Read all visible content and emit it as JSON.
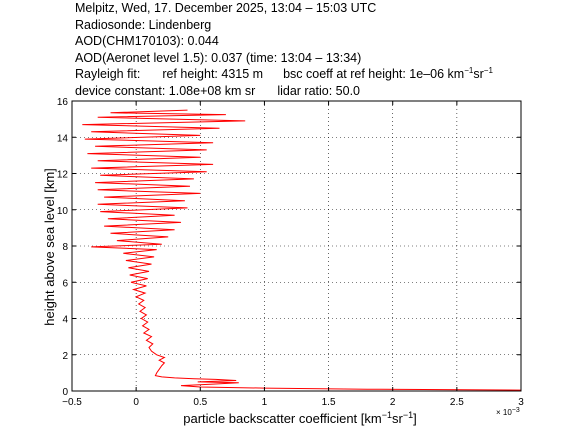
{
  "header": {
    "title_line": "Melpitz, Wed, 17. December 2025, 13:04 – 15:03 UTC",
    "radiosonde": "Radiosonde: Lindenberg",
    "aod_chm": "AOD(CHM170103): 0.044",
    "aod_aeronet": "AOD(Aeronet level 1.5): 0.037   (time: 13:04 – 13:34)",
    "rayleigh_fit": "Rayleigh fit:",
    "ref_height": "ref height: 4315 m",
    "bsc_coeff_prefix": "bsc coeff at ref height: 1e–06 km",
    "device_constant": "device constant: 1.08e+08 km sr",
    "lidar_ratio": "lidar ratio: 50.0"
  },
  "units": {
    "exp_neg1": "−1",
    "sr": "sr",
    "km": "km"
  },
  "chart_data": {
    "type": "line",
    "xlabel_prefix": "particle backscatter coefficient [km",
    "xlabel_suffix": "]",
    "ylabel": "height above sea level [km]",
    "x_multiplier": "× 10",
    "x_multiplier_exp": "−3",
    "xlim": [
      -0.5,
      3.0
    ],
    "ylim": [
      0,
      16
    ],
    "xticks": [
      -0.5,
      0,
      0.5,
      1,
      1.5,
      2,
      2.5,
      3
    ],
    "xtick_labels": [
      "−0.5",
      "0",
      "0.5",
      "1",
      "1.5",
      "2",
      "2.5",
      "3"
    ],
    "yticks": [
      0,
      2,
      4,
      6,
      8,
      10,
      12,
      14,
      16
    ],
    "ytick_labels": [
      "0",
      "2",
      "4",
      "6",
      "8",
      "10",
      "12",
      "14",
      "16"
    ],
    "grid": true,
    "line_color": "#ff0000",
    "series": [
      {
        "unit_scale": "1e-3 km-1 sr-1",
        "points": [
          [
            3.0,
            0.05
          ],
          [
            1.8,
            0.1
          ],
          [
            1.0,
            0.16
          ],
          [
            0.5,
            0.22
          ],
          [
            0.35,
            0.3
          ],
          [
            0.6,
            0.38
          ],
          [
            0.8,
            0.45
          ],
          [
            0.48,
            0.5
          ],
          [
            0.78,
            0.58
          ],
          [
            0.62,
            0.64
          ],
          [
            0.45,
            0.68
          ],
          [
            0.3,
            0.72
          ],
          [
            0.2,
            0.78
          ],
          [
            0.15,
            0.85
          ],
          [
            0.16,
            1.0
          ],
          [
            0.18,
            1.2
          ],
          [
            0.2,
            1.4
          ],
          [
            0.22,
            1.55
          ],
          [
            0.18,
            1.7
          ],
          [
            0.22,
            1.85
          ],
          [
            0.16,
            2.0
          ],
          [
            0.12,
            2.2
          ],
          [
            0.1,
            2.4
          ],
          [
            0.13,
            2.6
          ],
          [
            0.08,
            2.8
          ],
          [
            0.12,
            3.0
          ],
          [
            0.06,
            3.2
          ],
          [
            0.1,
            3.4
          ],
          [
            0.05,
            3.6
          ],
          [
            0.09,
            3.8
          ],
          [
            0.04,
            4.0
          ],
          [
            0.08,
            4.2
          ],
          [
            0.03,
            4.4
          ],
          [
            0.07,
            4.6
          ],
          [
            0.02,
            4.8
          ],
          [
            0.06,
            5.0
          ],
          [
            0.0,
            5.2
          ],
          [
            0.07,
            5.4
          ],
          [
            -0.02,
            5.6
          ],
          [
            0.08,
            5.8
          ],
          [
            -0.04,
            6.0
          ],
          [
            0.09,
            6.2
          ],
          [
            -0.05,
            6.4
          ],
          [
            0.1,
            6.6
          ],
          [
            -0.06,
            6.8
          ],
          [
            0.12,
            7.0
          ],
          [
            -0.08,
            7.2
          ],
          [
            0.14,
            7.4
          ],
          [
            -0.1,
            7.6
          ],
          [
            0.16,
            7.8
          ],
          [
            -0.35,
            7.95
          ],
          [
            0.2,
            8.1
          ],
          [
            -0.15,
            8.3
          ],
          [
            0.25,
            8.5
          ],
          [
            -0.2,
            8.7
          ],
          [
            0.3,
            8.9
          ],
          [
            -0.25,
            9.1
          ],
          [
            0.35,
            9.3
          ],
          [
            -0.22,
            9.5
          ],
          [
            0.3,
            9.7
          ],
          [
            -0.28,
            9.9
          ],
          [
            0.4,
            10.1
          ],
          [
            -0.3,
            10.3
          ],
          [
            0.38,
            10.5
          ],
          [
            -0.25,
            10.7
          ],
          [
            0.5,
            10.9
          ],
          [
            -0.3,
            11.1
          ],
          [
            0.42,
            11.3
          ],
          [
            -0.32,
            11.5
          ],
          [
            0.45,
            11.7
          ],
          [
            -0.28,
            11.9
          ],
          [
            0.55,
            12.1
          ],
          [
            -0.35,
            12.3
          ],
          [
            0.6,
            12.5
          ],
          [
            -0.3,
            12.7
          ],
          [
            0.5,
            12.9
          ],
          [
            -0.38,
            13.1
          ],
          [
            0.55,
            13.3
          ],
          [
            -0.32,
            13.5
          ],
          [
            0.6,
            13.7
          ],
          [
            -0.4,
            13.9
          ],
          [
            0.5,
            14.1
          ],
          [
            -0.35,
            14.3
          ],
          [
            0.65,
            14.5
          ],
          [
            -0.42,
            14.7
          ],
          [
            0.85,
            14.9
          ],
          [
            -0.3,
            15.1
          ],
          [
            0.7,
            15.25
          ],
          [
            -0.2,
            15.35
          ],
          [
            0.4,
            15.5
          ]
        ]
      }
    ]
  }
}
